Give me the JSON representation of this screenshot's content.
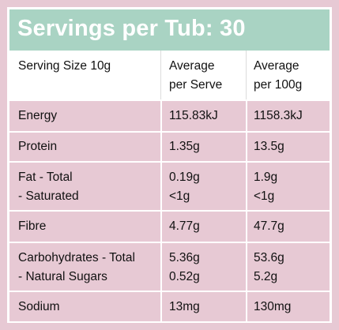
{
  "title": "Servings per Tub: 30",
  "header": {
    "col1": "Serving Size 10g",
    "col2_line1": "Average",
    "col2_line2": "per Serve",
    "col3_line1": "Average",
    "col3_line2": "per 100g"
  },
  "rows": [
    {
      "label": [
        "Energy"
      ],
      "per_serve": [
        "115.83kJ"
      ],
      "per_100g": [
        "1158.3kJ"
      ]
    },
    {
      "label": [
        "Protein"
      ],
      "per_serve": [
        "1.35g"
      ],
      "per_100g": [
        "13.5g"
      ]
    },
    {
      "label": [
        "Fat - Total",
        "- Saturated"
      ],
      "per_serve": [
        "0.19g",
        "<1g"
      ],
      "per_100g": [
        "1.9g",
        "<1g"
      ]
    },
    {
      "label": [
        "Fibre"
      ],
      "per_serve": [
        "4.77g"
      ],
      "per_100g": [
        "47.7g"
      ]
    },
    {
      "label": [
        "Carbohydrates - Total",
        "- Natural Sugars"
      ],
      "per_serve": [
        "5.36g",
        "0.52g"
      ],
      "per_100g": [
        "53.6g",
        "5.2g"
      ]
    },
    {
      "label": [
        "Sodium"
      ],
      "per_serve": [
        "13mg"
      ],
      "per_100g": [
        "130mg"
      ]
    }
  ],
  "colors": {
    "background": "#e7c9d4",
    "banner": "#a9d3c3",
    "header_bg": "#ffffff"
  }
}
